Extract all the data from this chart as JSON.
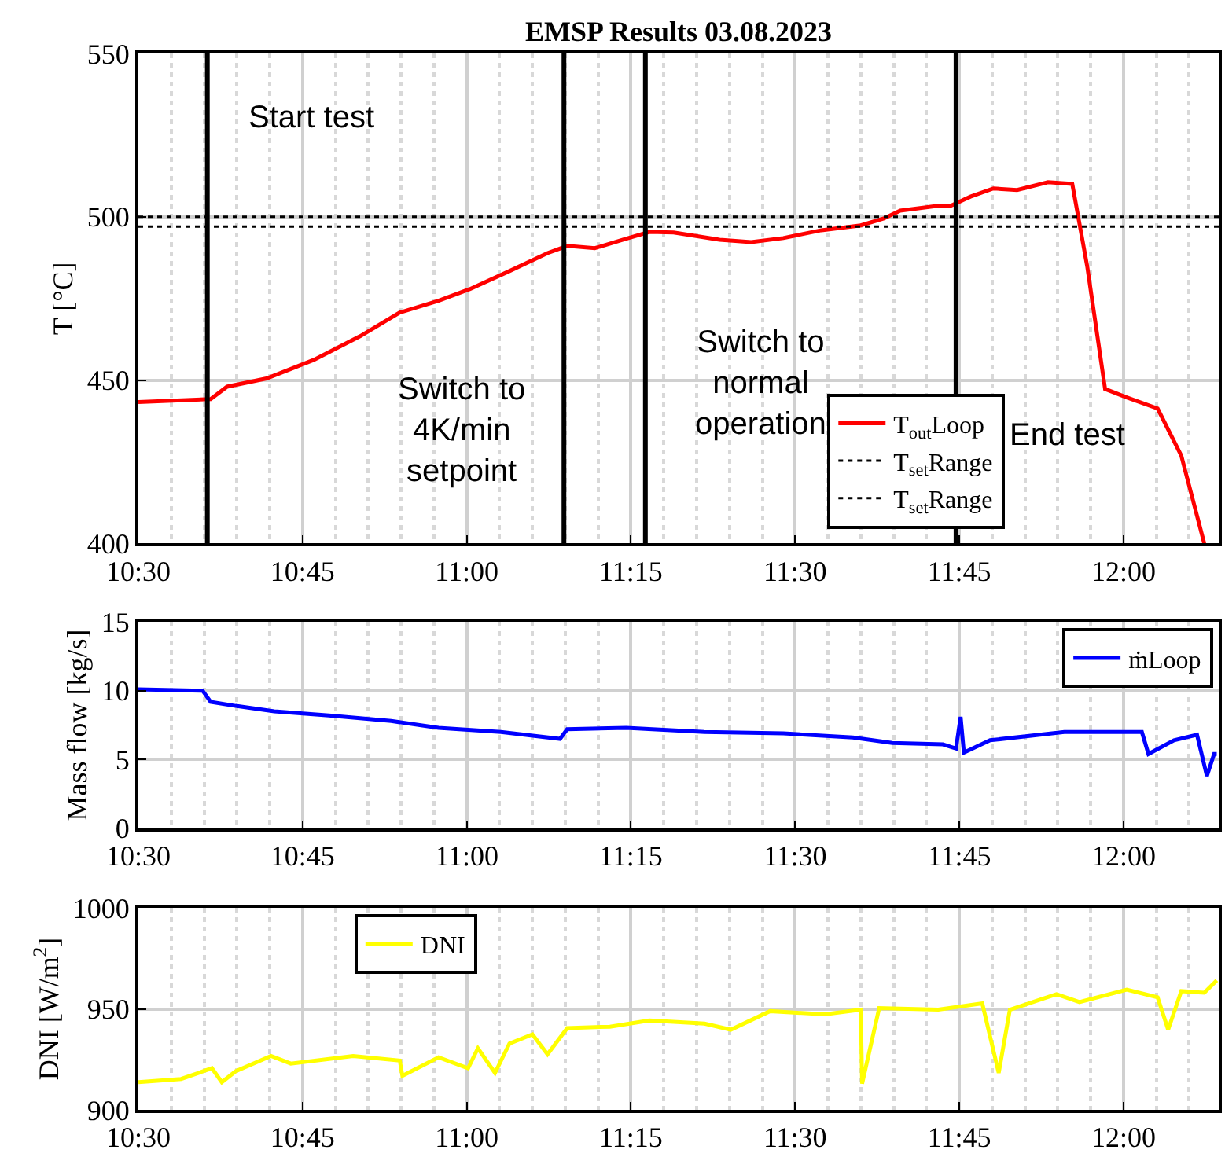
{
  "chart_data": [
    {
      "type": "line",
      "title": "EMSP Results 03.08.2023",
      "ylabel": "T [°C]",
      "xlim": [
        10.5,
        12.145
      ],
      "xticks": [
        {
          "value": 10.5,
          "label": "10:30"
        },
        {
          "value": 10.75,
          "label": "10:45"
        },
        {
          "value": 11,
          "label": "11:00"
        },
        {
          "value": 11.25,
          "label": "11:15"
        },
        {
          "value": 11.5,
          "label": "11:30"
        },
        {
          "value": 11.75,
          "label": "11:45"
        },
        {
          "value": 12,
          "label": "12:00"
        }
      ],
      "ylim": [
        400,
        550
      ],
      "yticks": [
        400,
        450,
        500,
        550
      ],
      "grid": true,
      "legend": "bottom",
      "series": [
        {
          "name": "T$_{out}$Loop",
          "color": "#ff0000",
          "line_style": "solid",
          "x": [
            10.5,
            10.61,
            10.635,
            10.695,
            10.767,
            10.838,
            10.898,
            10.957,
            11.005,
            11.065,
            11.123,
            11.153,
            11.195,
            11.243,
            11.278,
            11.315,
            11.385,
            11.433,
            11.482,
            11.54,
            11.6,
            11.635,
            11.66,
            11.718,
            11.737,
            11.767,
            11.802,
            11.838,
            11.885,
            11.922,
            11.945,
            11.972,
            12.005,
            12.052,
            12.088,
            12.123
          ],
          "values": [
            443.3,
            444.2,
            448,
            450.5,
            456.2,
            463.5,
            470.7,
            474.3,
            477.9,
            483.4,
            488.9,
            491.1,
            490.4,
            493.3,
            495.4,
            495.2,
            493,
            492.3,
            493.5,
            495.9,
            497.4,
            499.5,
            501.9,
            503.4,
            503.4,
            506.2,
            508.7,
            508.2,
            510.6,
            510.1,
            484.6,
            447.3,
            444.7,
            441.3,
            426.9,
            400
          ]
        },
        {
          "name": "T$_{set}$Range",
          "color": "#000000",
          "line_style": "dotted",
          "x": [
            10.5,
            12.145
          ],
          "values": [
            500,
            500
          ]
        },
        {
          "name": "T$_{set}$Range",
          "color": "#000000",
          "line_style": "dotted",
          "x": [
            10.5,
            12.145
          ],
          "values": [
            497,
            497
          ]
        }
      ],
      "ref_lines": [
        {
          "axis": "x",
          "value": 10.605,
          "label": "Start test",
          "color": "#000000"
        },
        {
          "axis": "x",
          "value": 11.148,
          "label": "Switch to\n4K/min\nsetpoint",
          "color": "#000000"
        },
        {
          "axis": "x",
          "value": 11.272,
          "label": "Switch to\nnormal\noperation",
          "color": "#000000"
        },
        {
          "axis": "x",
          "value": 11.745,
          "label": "End test",
          "color": "#000000"
        }
      ]
    },
    {
      "type": "line",
      "ylabel": "Mass flow [kg/s]",
      "xlim": [
        10.5,
        12.145
      ],
      "xticks": [
        {
          "value": 10.5,
          "label": "10:30"
        },
        {
          "value": 10.75,
          "label": "10:45"
        },
        {
          "value": 11,
          "label": "11:00"
        },
        {
          "value": 11.25,
          "label": "11:15"
        },
        {
          "value": 11.5,
          "label": "11:30"
        },
        {
          "value": 11.75,
          "label": "11:45"
        },
        {
          "value": 12,
          "label": "12:00"
        }
      ],
      "ylim": [
        0,
        15
      ],
      "yticks": [
        0,
        5,
        10,
        15
      ],
      "grid": true,
      "legend": "top right",
      "series": [
        {
          "name": "ṁLoop",
          "color": "#0000ff",
          "line_style": "solid",
          "x": [
            10.5,
            10.598,
            10.61,
            10.648,
            10.707,
            10.79,
            10.885,
            10.957,
            11.052,
            11.142,
            11.153,
            11.243,
            11.362,
            11.482,
            11.588,
            11.648,
            11.725,
            11.745,
            11.752,
            11.757,
            11.797,
            11.91,
            12.028,
            12.038,
            12.077,
            12.112,
            12.127,
            12.138,
            12.142
          ],
          "values": [
            10.1,
            10,
            9.2,
            8.9,
            8.5,
            8.2,
            7.8,
            7.3,
            7,
            6.5,
            7.2,
            7.3,
            7,
            6.9,
            6.6,
            6.2,
            6.1,
            5.8,
            8.1,
            5.5,
            6.4,
            7,
            7,
            5.4,
            6.4,
            6.8,
            3.8,
            5.4,
            5.4
          ]
        }
      ]
    },
    {
      "type": "line",
      "ylabel": "DNI [W/m$^{2}$]",
      "xlim": [
        10.5,
        12.145
      ],
      "xticks": [
        {
          "value": 10.5,
          "label": "10:30"
        },
        {
          "value": 10.75,
          "label": "10:45"
        },
        {
          "value": 11,
          "label": "11:00"
        },
        {
          "value": 11.25,
          "label": "11:15"
        },
        {
          "value": 11.5,
          "label": "11:30"
        },
        {
          "value": 11.75,
          "label": "11:45"
        },
        {
          "value": 12,
          "label": "12:00"
        }
      ],
      "ylim": [
        900,
        1000
      ],
      "yticks": [
        900,
        950,
        1000
      ],
      "grid": true,
      "legend": "top left",
      "series": [
        {
          "name": "DNI",
          "color": "#ffff00",
          "line_style": "solid",
          "x": [
            10.5,
            10.565,
            10.612,
            10.627,
            10.648,
            10.702,
            10.732,
            10.827,
            10.898,
            10.902,
            10.957,
            11.002,
            11.017,
            11.043,
            11.065,
            11.1,
            11.123,
            11.153,
            11.218,
            11.278,
            11.362,
            11.402,
            11.462,
            11.545,
            11.6,
            11.602,
            11.628,
            11.718,
            11.785,
            11.81,
            11.827,
            11.898,
            11.933,
            12.005,
            12.052,
            12.068,
            12.088,
            12.123,
            12.142
          ],
          "values": [
            913.7,
            915.3,
            920.6,
            913.7,
            919.1,
            926.7,
            922.9,
            926.7,
            924.4,
            916.8,
            926,
            920.6,
            930.5,
            918.3,
            932.8,
            937.4,
            927.5,
            940.5,
            941.2,
            944.3,
            942.7,
            939.7,
            948.9,
            947.3,
            949.6,
            913,
            950.4,
            949.6,
            952.7,
            918.3,
            949.6,
            957.3,
            953.4,
            959.5,
            955.7,
            939.7,
            958.8,
            958,
            964.1
          ]
        }
      ]
    }
  ]
}
